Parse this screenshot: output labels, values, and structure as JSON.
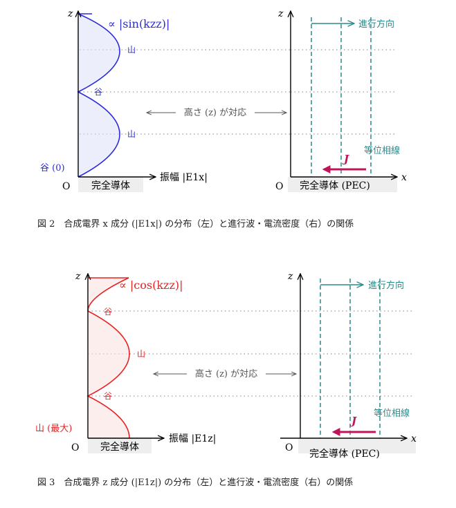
{
  "fig2": {
    "caption": "図 2　合成電界 x 成分 (|E1x|) の分布（左）と進行波・電流密度（右）の関係",
    "left": {
      "axis_z": "z",
      "formula": "∝ |sin(kzz)|",
      "peak_label": "山",
      "trough_label": "谷",
      "bottom_label": "谷 (0)",
      "origin": "O",
      "x_axis_label": "振幅 |E1x|",
      "base_label": "完全導体",
      "color": "#2a2ad8"
    },
    "center_arrow_label": "高さ (z) が対応",
    "right": {
      "axis_z": "z",
      "axis_x": "x",
      "origin": "O",
      "direction_label": "進行方向",
      "phase_label": "等位相線",
      "current_label": "J",
      "base_label": "完全導体 (PEC)",
      "teal": "#2a8a8a",
      "magenta": "#c0145a"
    }
  },
  "fig3": {
    "caption": "図 3　合成電界 z 成分 (|E1z|) の分布（左）と進行波・電流密度（右）の関係",
    "left": {
      "axis_z": "z",
      "formula": "∝ |cos(kzz)|",
      "peak_label": "山",
      "trough_label": "谷",
      "bottom_label": "山 (最大)",
      "origin": "O",
      "x_axis_label": "振幅 |E1z|",
      "base_label": "完全導体",
      "color": "#e82020"
    },
    "center_arrow_label": "高さ (z) が対応",
    "right": {
      "axis_z": "z",
      "axis_x": "x",
      "origin": "O",
      "direction_label": "進行方向",
      "phase_label": "等位相線",
      "current_label": "J",
      "base_label": "完全導体 (PEC)",
      "teal": "#2a8a8a",
      "magenta": "#c0145a"
    }
  }
}
